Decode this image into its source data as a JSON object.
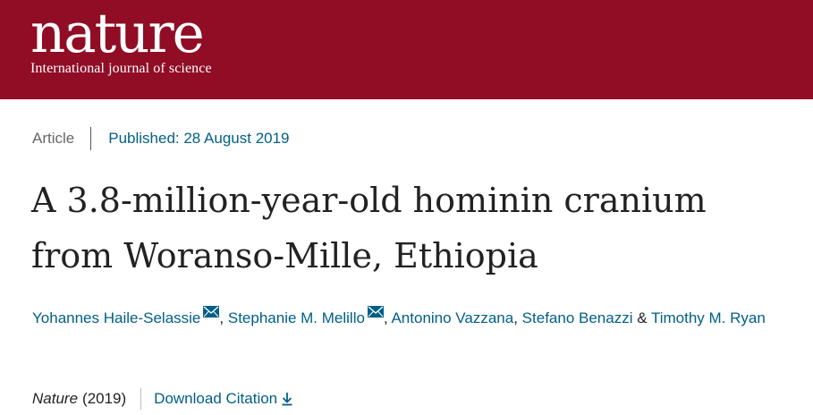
{
  "header": {
    "logo_text": "nature",
    "tagline": "International journal of science",
    "bg_color": "#910c25"
  },
  "article": {
    "type": "Article",
    "published": "Published: 28 August 2019",
    "title_line1": "A 3.8-million-year-old hominin cranium",
    "title_line2": "from Woranso-Mille, Ethiopia",
    "authors": [
      {
        "name": "Yohannes Haile-Selassie",
        "contact_icon": "mail-icon"
      },
      {
        "name": "Stephanie M. Melillo",
        "contact_icon": "mail-icon"
      },
      {
        "name": "Antonino Vazzana"
      },
      {
        "name": "Stefano Benazzi"
      },
      {
        "name": "Timothy M. Ryan"
      }
    ],
    "separators": {
      "comma": ",",
      "ampersand": "&"
    },
    "journal": "Nature",
    "year": "(2019)",
    "download_label": "Download Citation",
    "link_color": "#005f86"
  }
}
